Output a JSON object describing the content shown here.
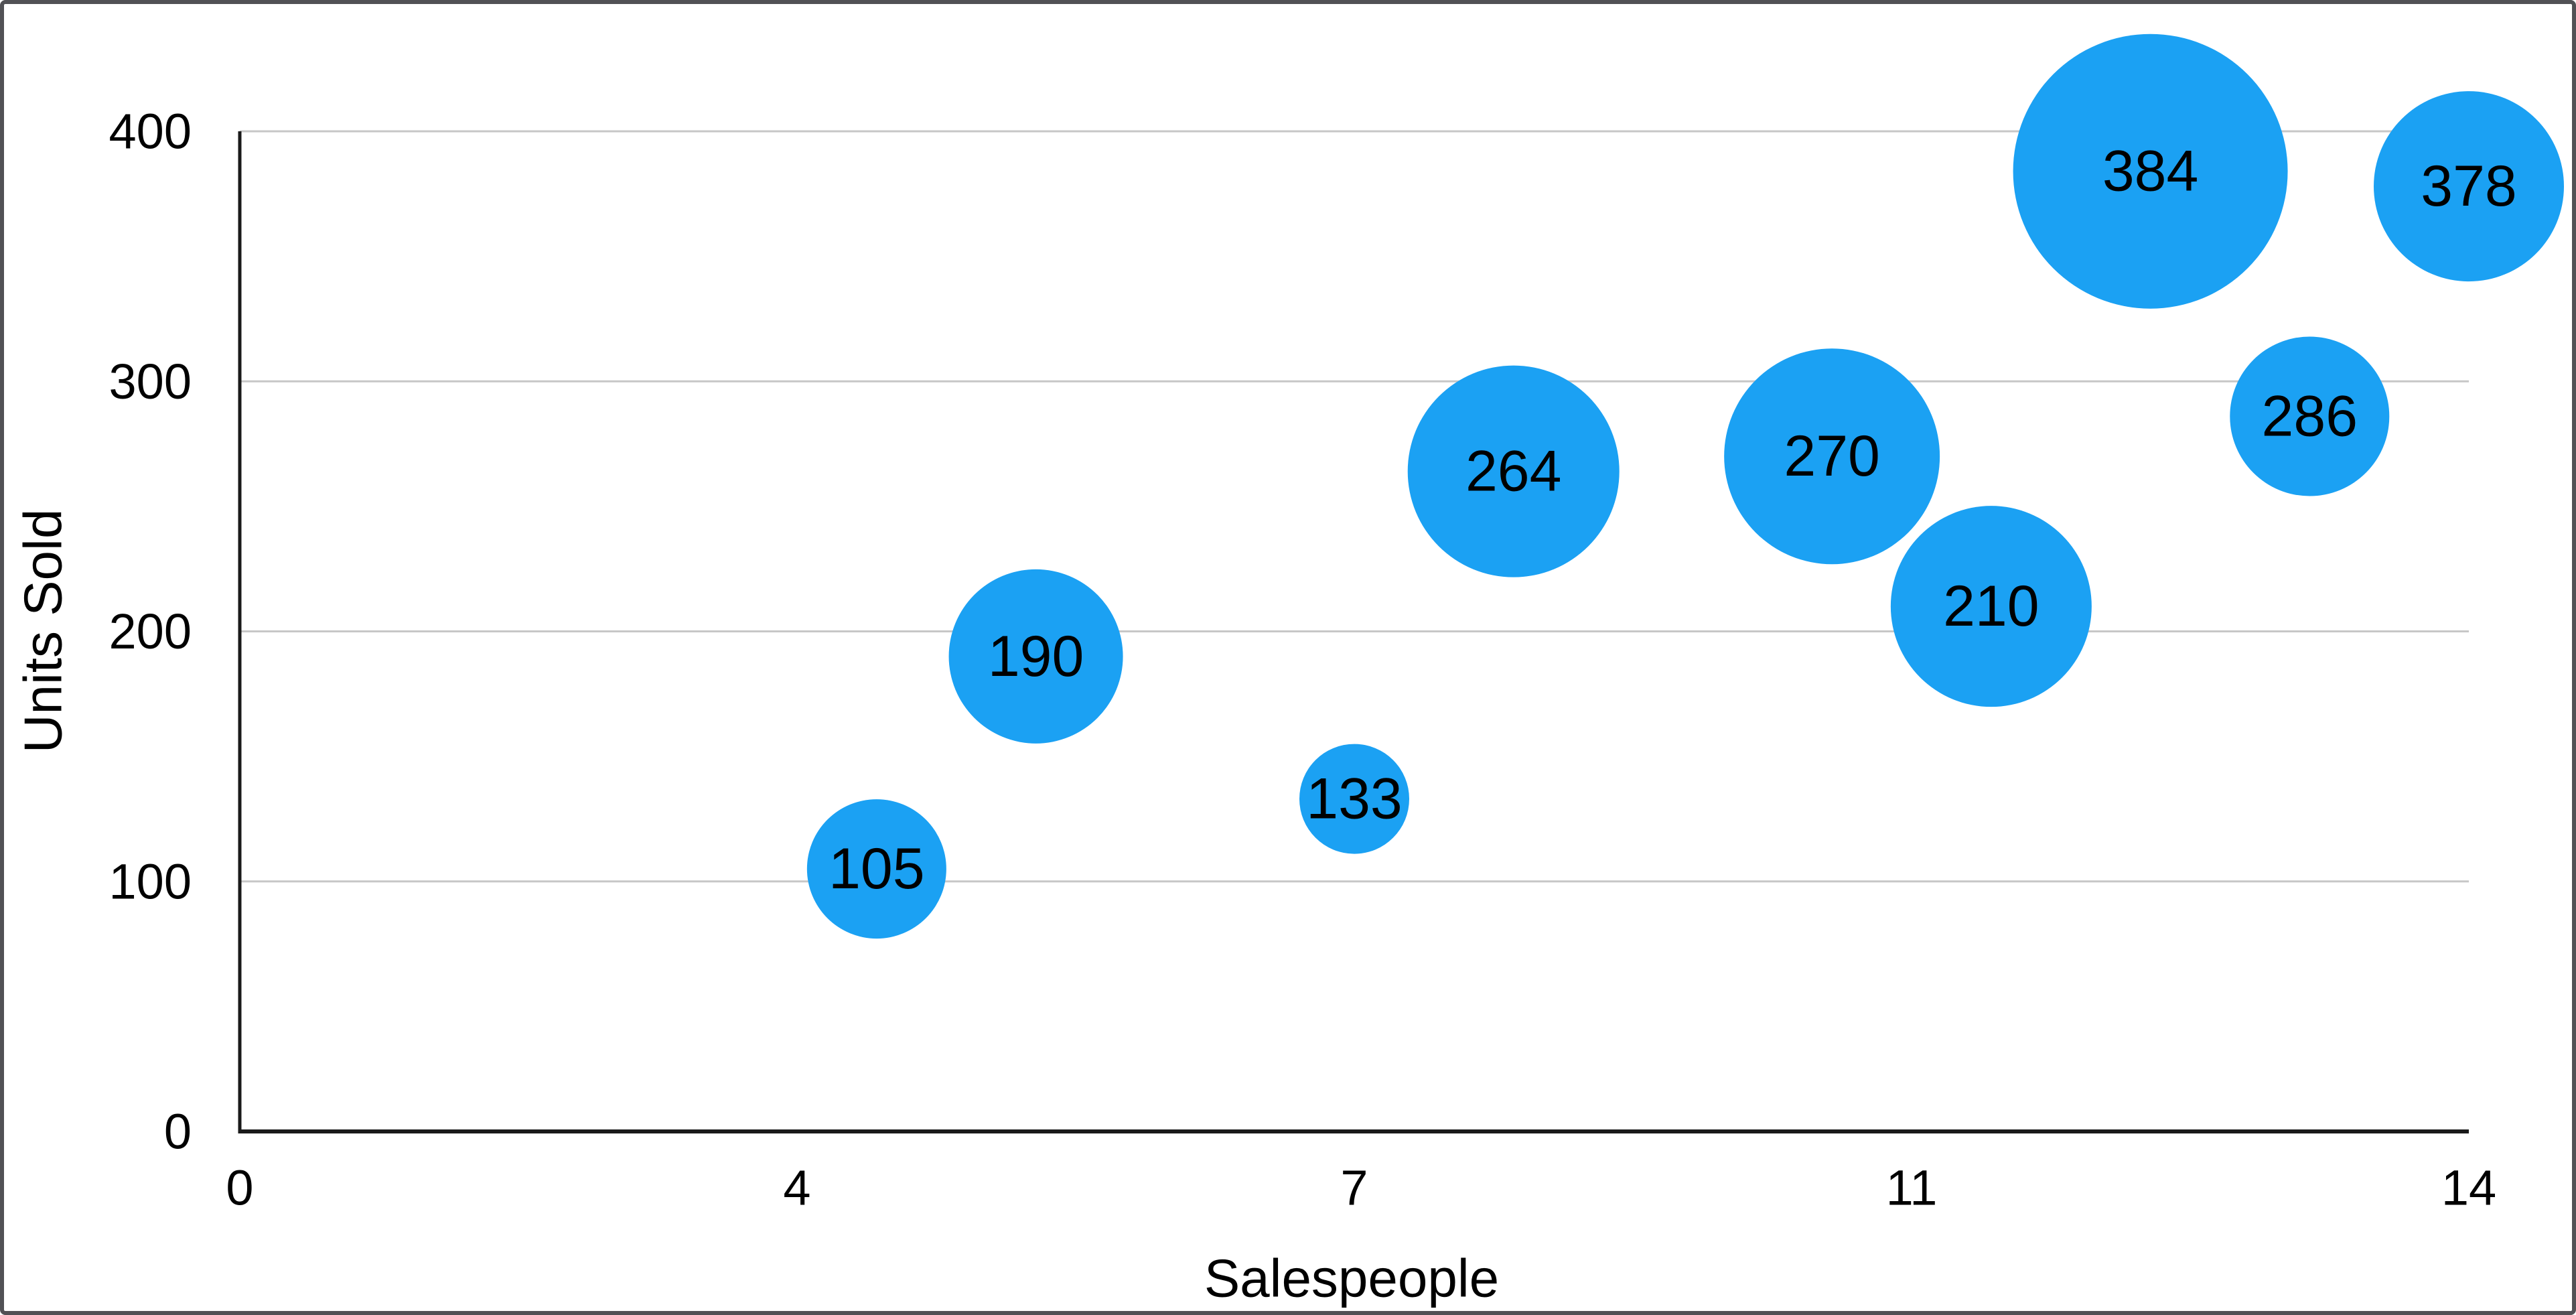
{
  "window": {
    "background": "#ffffff",
    "frame_border_color": "#515155"
  },
  "chart_data": {
    "type": "bubble",
    "title": "",
    "xlabel": "Salespeople",
    "ylabel": "Units Sold",
    "xlim": [
      0,
      14
    ],
    "ylim": [
      0,
      400
    ],
    "grid": "horizontal-only",
    "legend": "none",
    "x_ticks": [
      {
        "label": "0",
        "value": 0
      },
      {
        "label": "4",
        "value": 3.5
      },
      {
        "label": "7",
        "value": 7
      },
      {
        "label": "11",
        "value": 10.5
      },
      {
        "label": "14",
        "value": 14
      }
    ],
    "y_ticks": [
      {
        "label": "0",
        "value": 0
      },
      {
        "label": "100",
        "value": 100
      },
      {
        "label": "200",
        "value": 200
      },
      {
        "label": "300",
        "value": 300
      },
      {
        "label": "400",
        "value": 400
      }
    ],
    "points": [
      {
        "x": 4,
        "y": 105,
        "label": "105",
        "radius_px": 104
      },
      {
        "x": 5,
        "y": 190,
        "label": "190",
        "radius_px": 130
      },
      {
        "x": 7,
        "y": 133,
        "label": "133",
        "radius_px": 82
      },
      {
        "x": 8,
        "y": 264,
        "label": "264",
        "radius_px": 158
      },
      {
        "x": 10,
        "y": 270,
        "label": "270",
        "radius_px": 161
      },
      {
        "x": 11,
        "y": 210,
        "label": "210",
        "radius_px": 150
      },
      {
        "x": 12,
        "y": 384,
        "label": "384",
        "radius_px": 205
      },
      {
        "x": 13,
        "y": 286,
        "label": "286",
        "radius_px": 119
      },
      {
        "x": 14,
        "y": 378,
        "label": "378",
        "radius_px": 142
      }
    ],
    "colors": {
      "bubble": "#1BA1F3",
      "bubble_label": "#000000",
      "grid": "#C7C7C7",
      "axis": "#1A1A1A",
      "tick_text": "#000000",
      "axis_title_text": "#000000"
    }
  }
}
